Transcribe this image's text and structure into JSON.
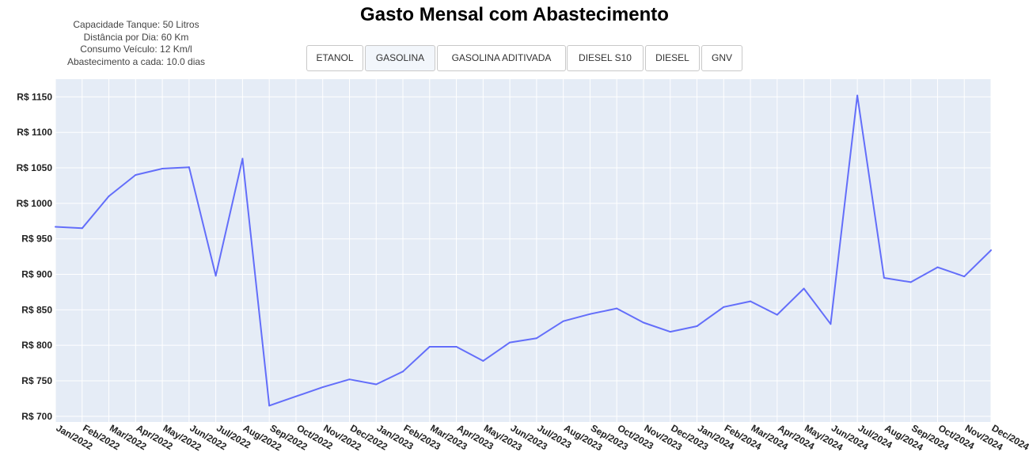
{
  "info": {
    "lines": [
      "Capacidade Tanque: 50 Litros",
      "Distância por Dia: 60 Km",
      "Consumo Veículo: 12 Km/l",
      "Abastecimento a cada: 10.0 dias"
    ]
  },
  "tabs": [
    {
      "label": "ETANOL",
      "active": false
    },
    {
      "label": "GASOLINA",
      "active": true
    },
    {
      "label": "GASOLINA ADITIVADA",
      "active": false
    },
    {
      "label": "DIESEL S10",
      "active": false
    },
    {
      "label": "DIESEL",
      "active": false
    },
    {
      "label": "GNV",
      "active": false
    }
  ],
  "colors": {
    "line": "#636efa",
    "plot_bg": "#e5ecf6",
    "grid": "#ffffff"
  },
  "chart_data": {
    "type": "line",
    "title": "Gasto Mensal com Abastecimento",
    "grid": true,
    "ylim": [
      692,
      1175
    ],
    "yticks": [
      700,
      750,
      800,
      850,
      900,
      950,
      1000,
      1050,
      1100,
      1150
    ],
    "ytick_labels": [
      "R$ 700",
      "R$ 750",
      "R$ 800",
      "R$ 850",
      "R$ 900",
      "R$ 950",
      "R$ 1000",
      "R$ 1050",
      "R$ 1100",
      "R$ 1150"
    ],
    "x": [
      "Jan/2022",
      "Feb/2022",
      "Mar/2022",
      "Apr/2022",
      "May/2022",
      "Jun/2022",
      "Jul/2022",
      "Aug/2022",
      "Sep/2022",
      "Oct/2022",
      "Nov/2022",
      "Dec/2022",
      "Jan/2023",
      "Feb/2023",
      "Mar/2023",
      "Apr/2023",
      "May/2023",
      "Jun/2023",
      "Jul/2023",
      "Aug/2023",
      "Sep/2023",
      "Oct/2023",
      "Nov/2023",
      "Dec/2023",
      "Jan/2024",
      "Feb/2024",
      "Mar/2024",
      "Apr/2024",
      "May/2024",
      "Jun/2024",
      "Jul/2024",
      "Aug/2024",
      "Sep/2024",
      "Oct/2024",
      "Nov/2024",
      "Dec/2024"
    ],
    "series": [
      {
        "values": [
          967,
          965,
          1010,
          1040,
          1049,
          1051,
          898,
          1063,
          715,
          728,
          741,
          752,
          745,
          763,
          798,
          798,
          778,
          804,
          810,
          834,
          844,
          852,
          832,
          819,
          827,
          854,
          862,
          843,
          880,
          830,
          1152,
          895,
          889,
          910,
          897,
          934
        ]
      }
    ]
  }
}
